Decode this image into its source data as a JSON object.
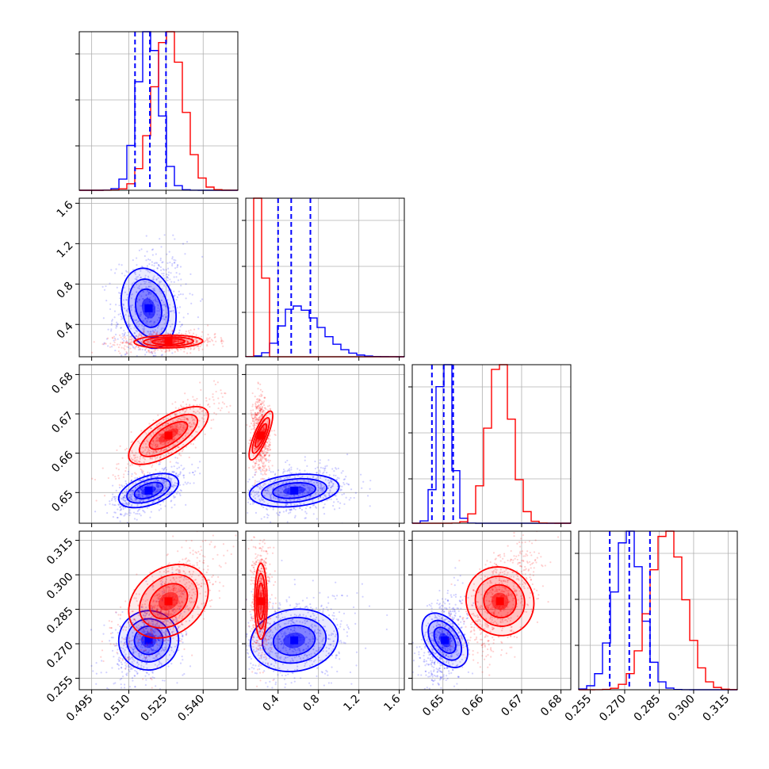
{
  "chart_data": {
    "type": "corner",
    "title": "",
    "grid": true,
    "colors": {
      "series_a": "#0000ff",
      "series_b": "#ff0000"
    },
    "series": [
      {
        "color": "#0000ff"
      },
      {
        "color": "#ff0000"
      }
    ],
    "parameters": [
      {
        "index": 0,
        "range": [
          0.49,
          0.554
        ],
        "ticks": [
          0.495,
          0.51,
          0.525,
          0.54
        ],
        "tick_labels": [
          "0.495",
          "0.510",
          "0.525",
          "0.540"
        ],
        "log": false
      },
      {
        "index": 1,
        "range": [
          0.08,
          1.65
        ],
        "ticks": [
          0.4,
          0.8,
          1.2,
          1.6
        ],
        "tick_labels": [
          "0.4",
          "0.8",
          "1.2",
          "1.6"
        ],
        "log": false
      },
      {
        "index": 2,
        "range": [
          0.6422,
          0.6825
        ],
        "ticks": [
          0.65,
          0.66,
          0.67,
          0.68
        ],
        "tick_labels": [
          "0.65",
          "0.66",
          "0.67",
          "0.68"
        ],
        "log": false
      },
      {
        "index": 3,
        "range": [
          0.25,
          0.319
        ],
        "ticks": [
          0.255,
          0.27,
          0.285,
          0.3,
          0.315
        ],
        "tick_labels": [
          "0.255",
          "0.270",
          "0.285",
          "0.300",
          "0.315"
        ],
        "log": false
      }
    ],
    "quantiles_blue": [
      [
        0.5125,
        0.5185,
        0.525
      ],
      [
        0.4,
        0.53,
        0.72
      ],
      [
        0.6472,
        0.6502,
        0.6526
      ],
      [
        0.2635,
        0.272,
        0.281
      ]
    ],
    "distributions": {
      "blue": [
        {
          "mean": 0.518,
          "sd": 0.0045
        },
        {
          "mean": 0.56,
          "sd": 0.18
        },
        {
          "mean": 0.6505,
          "sd": 0.0018
        },
        {
          "mean": 0.2715,
          "sd": 0.006
        }
      ],
      "red": [
        {
          "mean": 0.526,
          "sd": 0.006
        },
        {
          "mean": 0.23,
          "sd": 0.028
        },
        {
          "mean": 0.6645,
          "sd": 0.003
        },
        {
          "mean": 0.2885,
          "sd": 0.0075
        }
      ]
    }
  }
}
